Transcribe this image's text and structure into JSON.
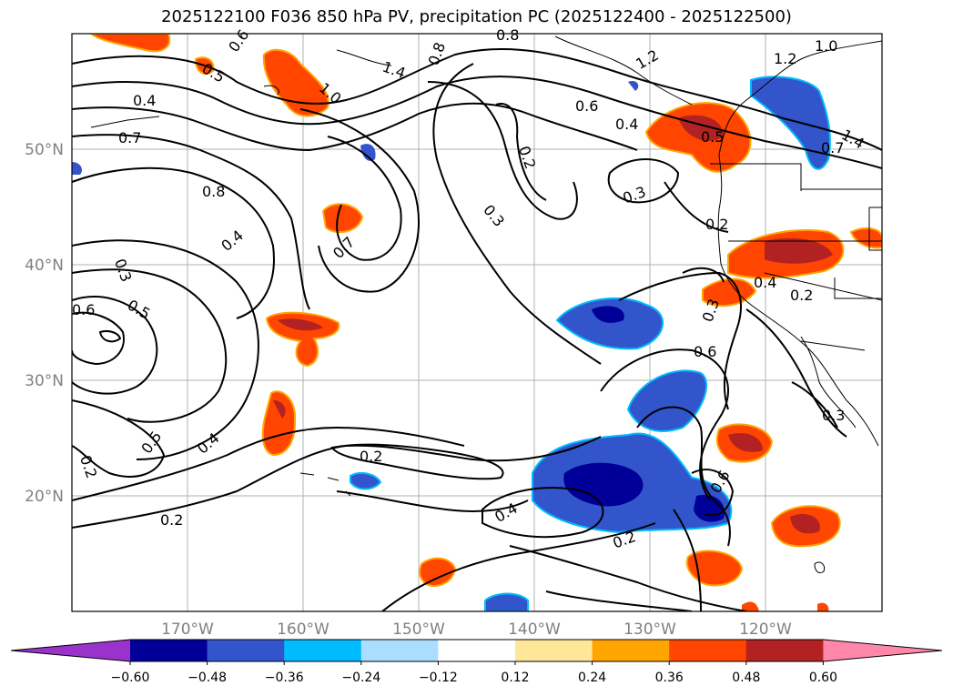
{
  "title": "2025122100 F036 850 hPa PV, precipitation PC (2025122400 - 2025122500)",
  "map": {
    "projection": "PlateCarree",
    "lon_range": [
      -180,
      -110
    ],
    "lat_range": [
      10,
      60
    ],
    "lon_ticks": [
      "170°W",
      "160°W",
      "150°W",
      "140°W",
      "130°W",
      "120°W"
    ],
    "lat_ticks": [
      "50°N",
      "40°N",
      "30°N",
      "20°N"
    ],
    "grid": true
  },
  "contour_labels": [
    "0.6",
    "0.5",
    "0.4",
    "0.7",
    "1.0",
    "1.4",
    "0.8",
    "0.8",
    "1.2",
    "1.0",
    "1.2",
    "1.4",
    "0.6",
    "0.4",
    "0.5",
    "0.7",
    "0.2",
    "0.8",
    "0.3",
    "0.3",
    "0.4",
    "0.7",
    "0.3",
    "0.2",
    "0.6",
    "0.5",
    "0.3",
    "0.4",
    "0.2",
    "0.6",
    "0.5",
    "0.4",
    "0.2",
    "0.2",
    "0.4",
    "0.6",
    "0.2",
    "0.3",
    "0.2"
  ],
  "colorbar": {
    "ticks": [
      "−0.60",
      "−0.48",
      "−0.36",
      "−0.24",
      "−0.12",
      "0.12",
      "0.24",
      "0.36",
      "0.48",
      "0.60"
    ],
    "colors": [
      "#9933cc",
      "#000099",
      "#3355cc",
      "#00bbff",
      "#aaddff",
      "#ffffff",
      "#ffe699",
      "#ffa500",
      "#ff4500",
      "#b22222",
      "#ff88aa"
    ]
  }
}
